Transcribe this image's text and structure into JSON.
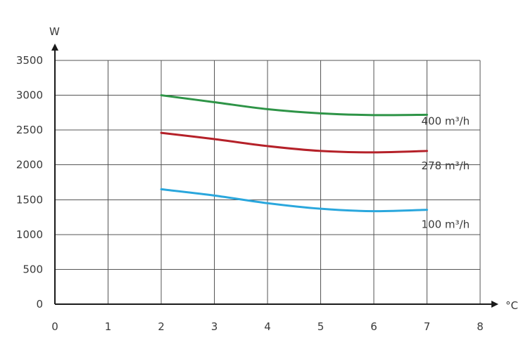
{
  "chart_data": {
    "type": "line",
    "xlabel": "°C",
    "ylabel": "W",
    "xlim": [
      0,
      8
    ],
    "ylim": [
      0,
      3500
    ],
    "xticks": [
      0,
      1,
      2,
      3,
      4,
      5,
      6,
      7,
      8
    ],
    "yticks": [
      0,
      500,
      1000,
      1500,
      2000,
      2500,
      3000,
      3500
    ],
    "grid": true,
    "series": [
      {
        "name": "400 m³/h",
        "color": "#2e9447",
        "x": [
          2,
          3,
          4,
          5,
          6,
          7
        ],
        "y": [
          3000,
          2900,
          2800,
          2740,
          2715,
          2720
        ]
      },
      {
        "name": "278 m³/h",
        "color": "#b52129",
        "x": [
          2,
          3,
          4,
          5,
          6,
          7
        ],
        "y": [
          2460,
          2370,
          2270,
          2200,
          2180,
          2200
        ]
      },
      {
        "name": "100 m³/h",
        "color": "#2aa7dd",
        "x": [
          2,
          3,
          4,
          5,
          6,
          7
        ],
        "y": [
          1650,
          1560,
          1450,
          1370,
          1335,
          1355
        ]
      }
    ]
  }
}
